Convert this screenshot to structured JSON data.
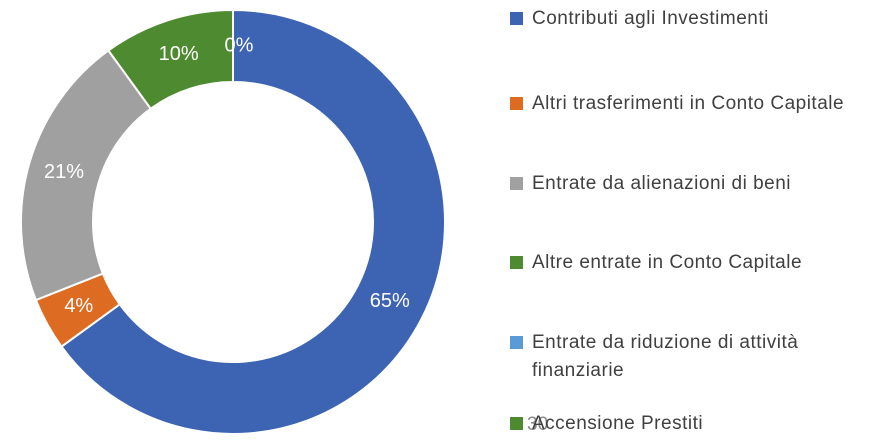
{
  "chart_data": {
    "type": "donut",
    "categories": [
      "Contributi agli Investimenti",
      "Altri trasferimenti in Conto Capitale",
      "Entrate da alienazioni di beni",
      "Altre entrate in Conto Capitale",
      "Entrate da riduzione di attività finanziarie",
      "Accensione Prestiti"
    ],
    "values": [
      65,
      4,
      21,
      10,
      0,
      0
    ],
    "value_labels": [
      "65%",
      "4%",
      "21%",
      "10%",
      "0%",
      null
    ],
    "colors": [
      "#3d64b2",
      "#dd6b22",
      "#a0a0a0",
      "#4e8b30",
      "#5b9bd5",
      "#4e8b30"
    ],
    "annotation": "30"
  }
}
